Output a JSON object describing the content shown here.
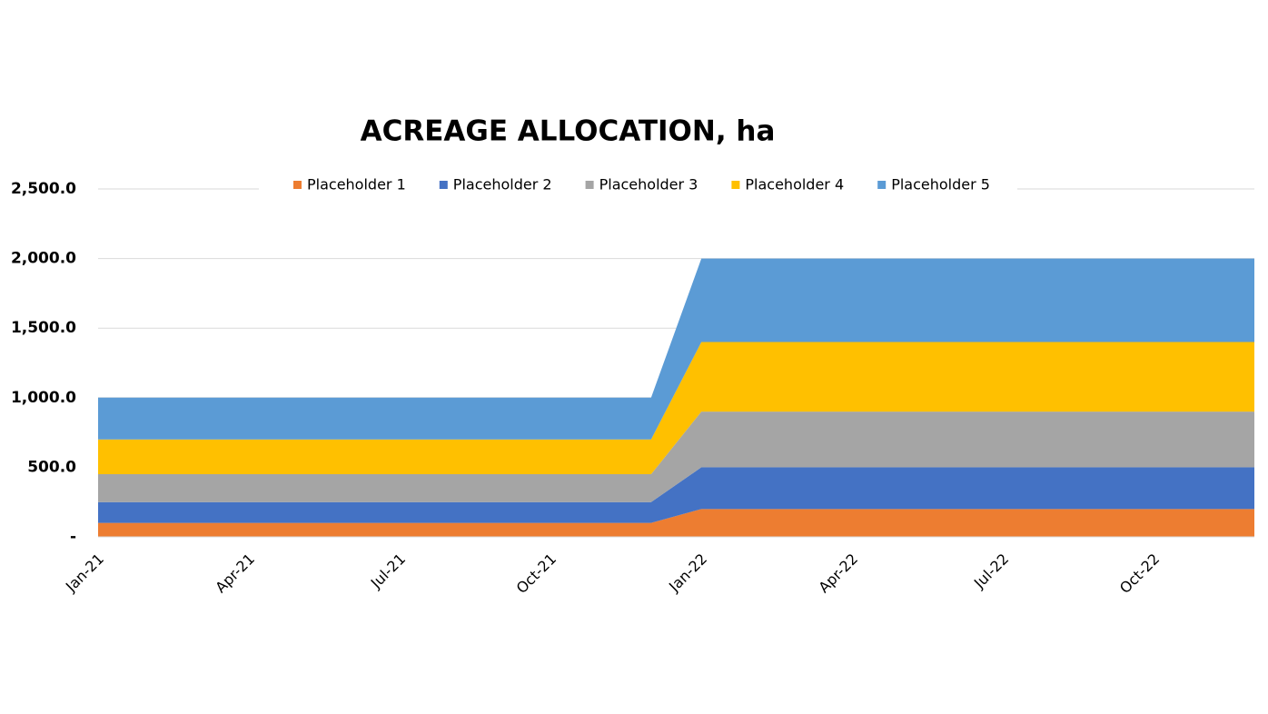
{
  "chart_data": {
    "type": "stacked_area",
    "title": "ACREAGE ALLOCATION, ha",
    "categories": [
      "Jan-21",
      null,
      null,
      "Apr-21",
      null,
      null,
      "Jul-21",
      null,
      null,
      "Oct-21",
      null,
      null,
      "Jan-22",
      null,
      null,
      "Apr-22",
      null,
      null,
      "Jul-22",
      null,
      null,
      "Oct-22",
      null,
      null
    ],
    "series": [
      {
        "name": "Placeholder 1",
        "color": "#ed7d31",
        "values": [
          100,
          100,
          100,
          100,
          100,
          100,
          100,
          100,
          100,
          100,
          100,
          100,
          200,
          200,
          200,
          200,
          200,
          200,
          200,
          200,
          200,
          200,
          200,
          200
        ]
      },
      {
        "name": "Placeholder 2",
        "color": "#4472c4",
        "values": [
          150,
          150,
          150,
          150,
          150,
          150,
          150,
          150,
          150,
          150,
          150,
          150,
          300,
          300,
          300,
          300,
          300,
          300,
          300,
          300,
          300,
          300,
          300,
          300
        ]
      },
      {
        "name": "Placeholder 3",
        "color": "#a5a5a5",
        "values": [
          200,
          200,
          200,
          200,
          200,
          200,
          200,
          200,
          200,
          200,
          200,
          200,
          400,
          400,
          400,
          400,
          400,
          400,
          400,
          400,
          400,
          400,
          400,
          400
        ]
      },
      {
        "name": "Placeholder 4",
        "color": "#ffc000",
        "values": [
          250,
          250,
          250,
          250,
          250,
          250,
          250,
          250,
          250,
          250,
          250,
          250,
          500,
          500,
          500,
          500,
          500,
          500,
          500,
          500,
          500,
          500,
          500,
          500
        ]
      },
      {
        "name": "Placeholder 5",
        "color": "#5b9bd5",
        "values": [
          300,
          300,
          300,
          300,
          300,
          300,
          300,
          300,
          300,
          300,
          300,
          300,
          600,
          600,
          600,
          600,
          600,
          600,
          600,
          600,
          600,
          600,
          600,
          600
        ]
      }
    ],
    "ylim": [
      0,
      2500
    ],
    "yticks": [
      {
        "value": 0,
        "label": "-"
      },
      {
        "value": 500,
        "label": "500.0"
      },
      {
        "value": 1000,
        "label": "1,000.0"
      },
      {
        "value": 1500,
        "label": "1,500.0"
      },
      {
        "value": 2000,
        "label": "2,000.0"
      },
      {
        "value": 2500,
        "label": "2,500.0"
      }
    ],
    "grid": true,
    "legend": "top"
  }
}
